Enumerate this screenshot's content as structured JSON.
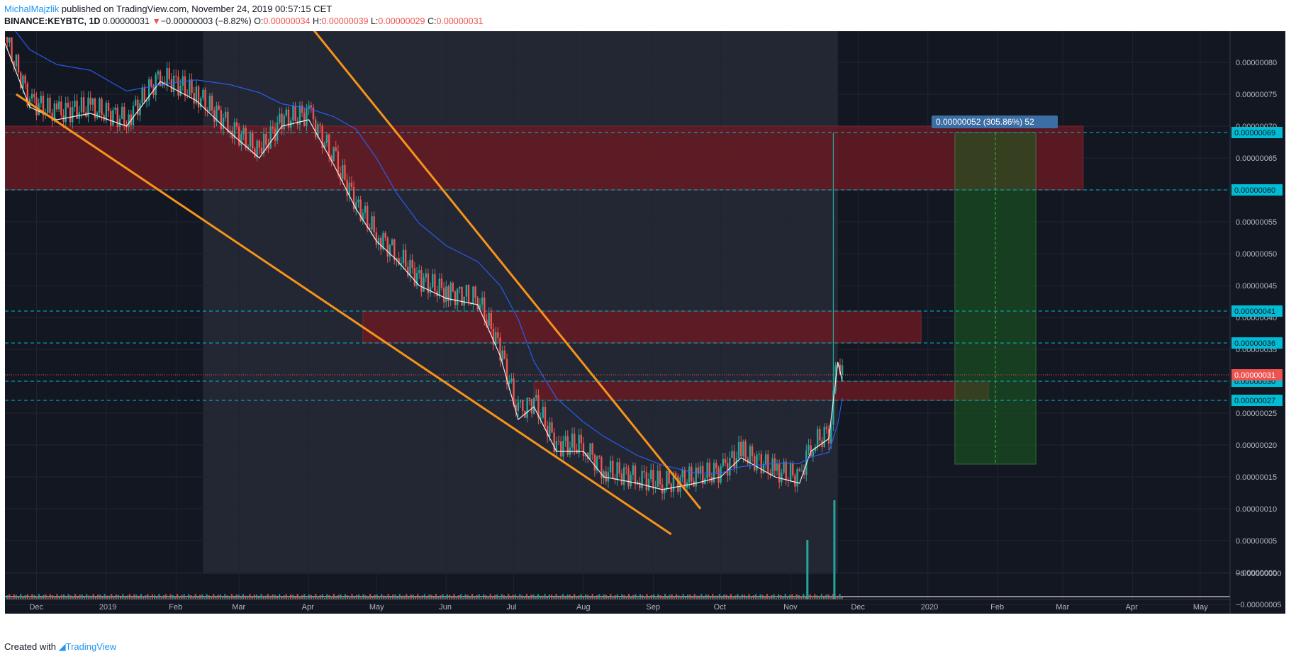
{
  "header": {
    "author": "MichalMajzlik",
    "published": "published on TradingView.com, November 24, 2019 00:57:15 CET",
    "symbol": "BINANCE:KEYBTC, 1D",
    "last": "0.00000031",
    "arrow": "▼",
    "change": "−0.00000003 (−8.82%)",
    "o_label": "O:",
    "o_value": "0.00000034",
    "h_label": "H:",
    "h_value": "0.00000039",
    "l_label": "L:",
    "l_value": "0.00000029",
    "c_label": "C:",
    "c_value": "0.00000031"
  },
  "footer": {
    "created_with": "Created with",
    "brand": "TradingView"
  },
  "colors": {
    "background": "#131722",
    "up": "#26a69a",
    "down": "#ef5350",
    "trendline": "#f7931a",
    "ma_fast": "#ffffff",
    "ma_slow": "#2962ff",
    "zone": "#6b1a22",
    "level_line": "#00bcd4",
    "target": "#1b5e20"
  },
  "chart_data": {
    "type": "candlestick",
    "symbol": "BINANCE:KEYBTC",
    "interval": "1D",
    "y_range": [
      -7e-08,
      8.6e-07
    ],
    "x_range": [
      "2018-11-17",
      "2020-05-17"
    ],
    "y_ticks": [
      "0.00000080",
      "0.00000075",
      "0.00000070",
      "0.00000065",
      "0.00000060",
      "0.00000055",
      "0.00000050",
      "0.00000045",
      "0.00000040",
      "0.00000035",
      "0.00000030",
      "0.00000025",
      "0.00000020",
      "0.00000015",
      "0.00000010",
      "0.00000005",
      "0.00000000",
      "−0.00000000",
      "−0.00000005"
    ],
    "y_tick_values": [
      8e-07,
      7.5e-07,
      7e-07,
      6.5e-07,
      6e-07,
      5.5e-07,
      5e-07,
      4.5e-07,
      4e-07,
      3.5e-07,
      3e-07,
      2.5e-07,
      2e-07,
      1.5e-07,
      1e-07,
      5e-08,
      0.0,
      -1e-09,
      -5e-08
    ],
    "x_ticks": [
      "Dec",
      "2019",
      "Feb",
      "Mar",
      "Apr",
      "May",
      "Jun",
      "Jul",
      "Aug",
      "Sep",
      "Oct",
      "Nov",
      "Dec",
      "2020",
      "Feb",
      "Mar",
      "Apr",
      "May"
    ],
    "x_tick_dates": [
      "2018-12-01",
      "2019-01-01",
      "2019-02-01",
      "2019-03-01",
      "2019-04-01",
      "2019-05-01",
      "2019-06-01",
      "2019-07-01",
      "2019-08-01",
      "2019-09-01",
      "2019-10-01",
      "2019-11-01",
      "2019-12-01",
      "2020-01-01",
      "2020-02-01",
      "2020-03-01",
      "2020-04-01",
      "2020-05-01"
    ],
    "price_path": [
      [
        "2018-11-17",
        8.4e-07
      ],
      [
        "2018-11-28",
        7.4e-07
      ],
      [
        "2018-12-10",
        7.2e-07
      ],
      [
        "2018-12-25",
        7.3e-07
      ],
      [
        "2019-01-10",
        7.1e-07
      ],
      [
        "2019-01-25",
        7.8e-07
      ],
      [
        "2019-02-10",
        7.5e-07
      ],
      [
        "2019-02-25",
        7e-07
      ],
      [
        "2019-03-10",
        6.6e-07
      ],
      [
        "2019-03-20",
        7.1e-07
      ],
      [
        "2019-04-01",
        7.2e-07
      ],
      [
        "2019-04-12",
        6.5e-07
      ],
      [
        "2019-04-22",
        5.8e-07
      ],
      [
        "2019-05-01",
        5.3e-07
      ],
      [
        "2019-05-10",
        5e-07
      ],
      [
        "2019-05-20",
        4.6e-07
      ],
      [
        "2019-06-01",
        4.4e-07
      ],
      [
        "2019-06-15",
        4.3e-07
      ],
      [
        "2019-06-25",
        3.5e-07
      ],
      [
        "2019-07-03",
        2.5e-07
      ],
      [
        "2019-07-10",
        2.7e-07
      ],
      [
        "2019-07-20",
        2e-07
      ],
      [
        "2019-08-01",
        2e-07
      ],
      [
        "2019-08-10",
        1.6e-07
      ],
      [
        "2019-08-25",
        1.5e-07
      ],
      [
        "2019-09-05",
        1.4e-07
      ],
      [
        "2019-09-20",
        1.5e-07
      ],
      [
        "2019-10-01",
        1.6e-07
      ],
      [
        "2019-10-10",
        1.9e-07
      ],
      [
        "2019-10-25",
        1.6e-07
      ],
      [
        "2019-11-05",
        1.5e-07
      ],
      [
        "2019-11-10",
        2e-07
      ],
      [
        "2019-11-18",
        2.2e-07
      ],
      [
        "2019-11-22",
        3.4e-07
      ],
      [
        "2019-11-24",
        3.1e-07
      ]
    ],
    "horizontal_levels": [
      "0.00000069",
      "0.00000060",
      "0.00000041",
      "0.00000036",
      "0.00000030",
      "0.00000027"
    ],
    "level_values": [
      6.9e-07,
      6e-07,
      4.1e-07,
      3.6e-07,
      3e-07,
      2.7e-07
    ],
    "last_price_label": "0.00000031",
    "last_price": 3.1e-07,
    "resistance_zones": [
      {
        "from": "2018-11-17",
        "to": "2020-03-10",
        "low": 6e-07,
        "high": 7e-07
      },
      {
        "from": "2019-04-25",
        "to": "2019-12-29",
        "low": 3.6e-07,
        "high": 4.1e-07
      },
      {
        "from": "2019-07-10",
        "to": "2020-01-28",
        "low": 2.7e-07,
        "high": 3e-07
      }
    ],
    "trendlines": [
      {
        "from": [
          "2018-11-22",
          7.5e-07
        ],
        "to": [
          "2019-09-09",
          6e-08
        ]
      },
      {
        "from": [
          "2019-04-01",
          8.6e-07
        ],
        "to": [
          "2019-09-22",
          1e-07
        ]
      }
    ],
    "measure": {
      "label": "0.00000052 (305.86%) 52",
      "from_date": "2020-01-13",
      "to_date": "2020-02-18",
      "low": 1.7e-07,
      "high": 6.9e-07
    },
    "volume_spikes": [
      [
        "2019-11-08",
        0.6
      ],
      [
        "2019-11-20",
        1.0
      ]
    ]
  }
}
